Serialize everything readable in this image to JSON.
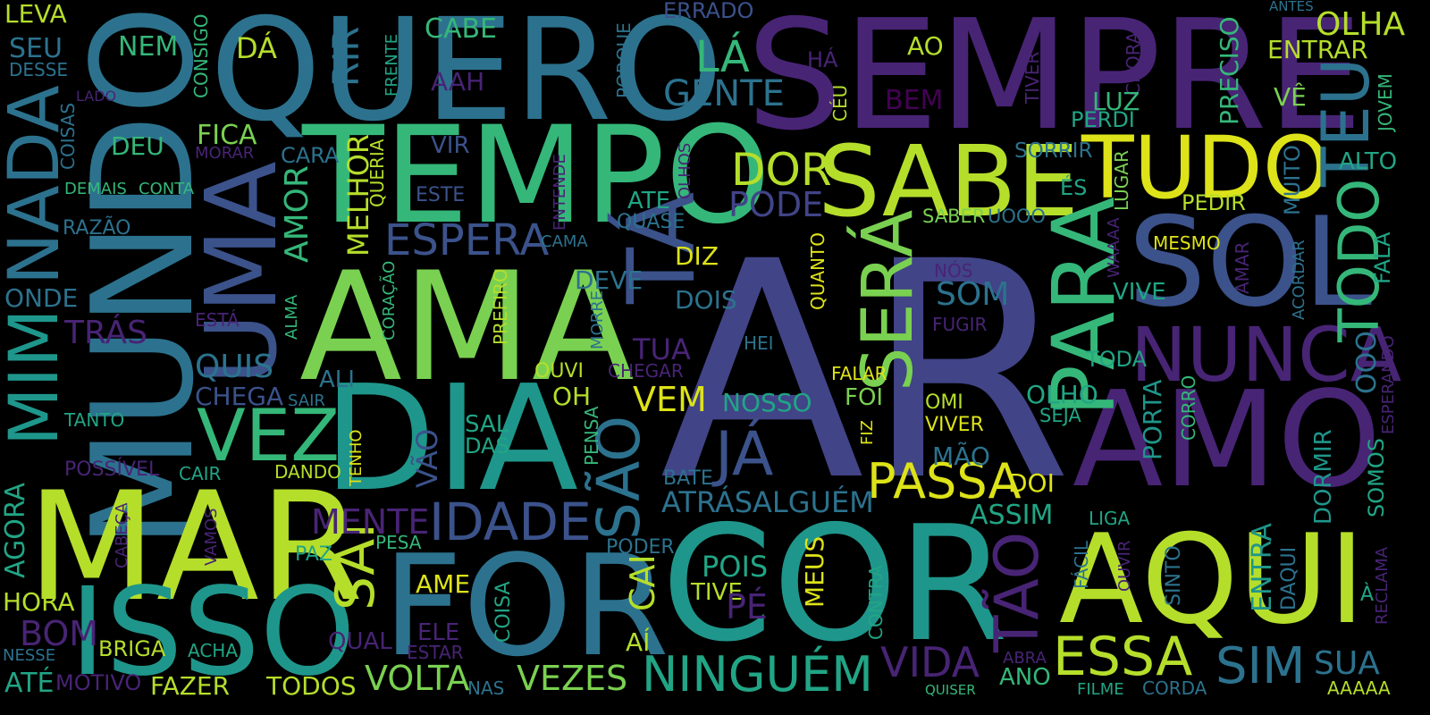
{
  "words": [
    {
      "text": "AR",
      "color": "#414487"
    },
    {
      "text": "SEMPRE",
      "color": "#482475"
    },
    {
      "text": "QUERO",
      "color": "#2c728e"
    },
    {
      "text": "MUNDO",
      "color": "#2c728e"
    },
    {
      "text": "TEMPO",
      "color": "#35b779"
    },
    {
      "text": "AMA",
      "color": "#7ad151"
    },
    {
      "text": "DIA",
      "color": "#1f968b"
    },
    {
      "text": "MAR",
      "color": "#b5de2b"
    },
    {
      "text": "COR",
      "color": "#1f968b"
    },
    {
      "text": "FOR",
      "color": "#2c728e"
    },
    {
      "text": "ISSO",
      "color": "#1f968b"
    },
    {
      "text": "AMO",
      "color": "#482475"
    },
    {
      "text": "AQUI",
      "color": "#b5de2b"
    },
    {
      "text": "SOL",
      "color": "#3b528b"
    },
    {
      "text": "SABE",
      "color": "#b5de2b"
    },
    {
      "text": "TUDO",
      "color": "#dde318"
    },
    {
      "text": "NADA",
      "color": "#2c728e"
    },
    {
      "text": "MIM",
      "color": "#1f968b"
    },
    {
      "text": "UMA",
      "color": "#3b528b"
    },
    {
      "text": "TÁ",
      "color": "#3b528b"
    },
    {
      "text": "PARA",
      "color": "#35b779"
    },
    {
      "text": "SERÁ",
      "color": "#7ad151"
    },
    {
      "text": "NUNCA",
      "color": "#482475"
    },
    {
      "text": "TEU",
      "color": "#2c728e"
    },
    {
      "text": "TODO",
      "color": "#35b779"
    },
    {
      "text": "VEZ",
      "color": "#35b779"
    },
    {
      "text": "JÁ",
      "color": "#3b528b"
    },
    {
      "text": "PASSA",
      "color": "#dde318"
    },
    {
      "text": "IDADE",
      "color": "#3b528b"
    },
    {
      "text": "NINGUÉM",
      "color": "#21a585"
    },
    {
      "text": "ESSA",
      "color": "#b5de2b"
    },
    {
      "text": "VIDA",
      "color": "#482475"
    },
    {
      "text": "SIM",
      "color": "#2c728e"
    },
    {
      "text": "ESPERA",
      "color": "#3b528b"
    },
    {
      "text": "SÃO",
      "color": "#2c728e"
    },
    {
      "text": "TÃO",
      "color": "#482475"
    },
    {
      "text": "SAI",
      "color": "#b5de2b"
    },
    {
      "text": "MENTE",
      "color": "#482475"
    },
    {
      "text": "DOR",
      "color": "#b5de2b"
    },
    {
      "text": "PODE",
      "color": "#414487"
    },
    {
      "text": "LÁ",
      "color": "#35b779"
    },
    {
      "text": "GENTE",
      "color": "#2c728e"
    },
    {
      "text": "RIR",
      "color": "#2c728e"
    },
    {
      "text": "DÁ",
      "color": "#b5de2b"
    },
    {
      "text": "CABE",
      "color": "#35b779"
    },
    {
      "text": "NEM",
      "color": "#35b779"
    },
    {
      "text": "SEU",
      "color": "#2c728e"
    },
    {
      "text": "LEVA",
      "color": "#b5de2b"
    },
    {
      "text": "DESSE",
      "color": "#2c728e"
    },
    {
      "text": "ERRADO",
      "color": "#3b528b"
    },
    {
      "text": "OLHA",
      "color": "#b5de2b"
    },
    {
      "text": "ENTRAR",
      "color": "#b5de2b"
    },
    {
      "text": "ANTES",
      "color": "#2c728e"
    },
    {
      "text": "PRECISO",
      "color": "#35b779"
    },
    {
      "text": "VÊ",
      "color": "#7ad151"
    },
    {
      "text": "JOVEM",
      "color": "#35b779"
    },
    {
      "text": "ALTO",
      "color": "#21a585"
    },
    {
      "text": "FALA",
      "color": "#21a585"
    },
    {
      "text": "CHORA",
      "color": "#482475"
    },
    {
      "text": "TIVER",
      "color": "#482475"
    },
    {
      "text": "LUZ",
      "color": "#35b779"
    },
    {
      "text": "PERDI",
      "color": "#21a585"
    },
    {
      "text": "SORRIR",
      "color": "#2c728e"
    },
    {
      "text": "ÉS",
      "color": "#21a585"
    },
    {
      "text": "LUGAR",
      "color": "#7ad151"
    },
    {
      "text": "PEDIR",
      "color": "#b5de2b"
    },
    {
      "text": "MUITO",
      "color": "#2c728e"
    },
    {
      "text": "SABER",
      "color": "#7ad151"
    },
    {
      "text": "UOOO",
      "color": "#2c728e"
    },
    {
      "text": "MESMO",
      "color": "#dde318"
    },
    {
      "text": "WAAAA",
      "color": "#482475"
    },
    {
      "text": "AMAR",
      "color": "#482475"
    },
    {
      "text": "ACORDAR",
      "color": "#2c728e"
    },
    {
      "text": "OOO",
      "color": "#2c728e"
    },
    {
      "text": "ESPERANDO",
      "color": "#482475"
    },
    {
      "text": "VIVE",
      "color": "#21a585"
    },
    {
      "text": "TODA",
      "color": "#21a585"
    },
    {
      "text": "PORTA",
      "color": "#1f968b"
    },
    {
      "text": "CORRO",
      "color": "#35b779"
    },
    {
      "text": "DORMIR",
      "color": "#1f968b"
    },
    {
      "text": "SOMOS",
      "color": "#21a585"
    },
    {
      "text": "OLHO",
      "color": "#21a585"
    },
    {
      "text": "SEJA",
      "color": "#21a585"
    },
    {
      "text": "ASSIM",
      "color": "#21a585"
    },
    {
      "text": "LIGA",
      "color": "#21a585"
    },
    {
      "text": "ENTRA",
      "color": "#1f968b"
    },
    {
      "text": "DAQUI",
      "color": "#2c728e"
    },
    {
      "text": "À",
      "color": "#21a585"
    },
    {
      "text": "RECLAMA",
      "color": "#482475"
    },
    {
      "text": "FÁCIL",
      "color": "#2c728e"
    },
    {
      "text": "OUVIR",
      "color": "#482475"
    },
    {
      "text": "SINTO",
      "color": "#2c728e"
    },
    {
      "text": "SUA",
      "color": "#2c728e"
    },
    {
      "text": "AAAAA",
      "color": "#b5de2b"
    },
    {
      "text": "CORDA",
      "color": "#2c728e"
    },
    {
      "text": "FILME",
      "color": "#21a585"
    },
    {
      "text": "QUISER",
      "color": "#35b779"
    },
    {
      "text": "ABRA",
      "color": "#482475"
    },
    {
      "text": "ANO",
      "color": "#35b779"
    },
    {
      "text": "DOI",
      "color": "#dde318"
    },
    {
      "text": "AO",
      "color": "#b5de2b"
    },
    {
      "text": "HÁ",
      "color": "#482475"
    },
    {
      "text": "CÉU",
      "color": "#b5de2b"
    },
    {
      "text": "BEM",
      "color": "#440154"
    },
    {
      "text": "PORQUE",
      "color": "#2c728e"
    },
    {
      "text": "AAH",
      "color": "#482475"
    },
    {
      "text": "FRENTE",
      "color": "#21a585"
    },
    {
      "text": "CONSIGO",
      "color": "#35b779"
    },
    {
      "text": "LADO",
      "color": "#482475"
    },
    {
      "text": "COISAS",
      "color": "#2c728e"
    },
    {
      "text": "DEU",
      "color": "#35b779"
    },
    {
      "text": "FICA",
      "color": "#7ad151"
    },
    {
      "text": "MORAR",
      "color": "#482475"
    },
    {
      "text": "CARA",
      "color": "#2c728e"
    },
    {
      "text": "VIR",
      "color": "#3b528b"
    },
    {
      "text": "OLHOS",
      "color": "#482475"
    },
    {
      "text": "ENTENDE",
      "color": "#482475"
    },
    {
      "text": "ATE",
      "color": "#21a585"
    },
    {
      "text": "QUASE",
      "color": "#2c728e"
    },
    {
      "text": "ESTE",
      "color": "#3b528b"
    },
    {
      "text": "CAMA",
      "color": "#2c728e"
    },
    {
      "text": "QUERIA",
      "color": "#b5de2b"
    },
    {
      "text": "MELHOR",
      "color": "#b5de2b"
    },
    {
      "text": "AMOR",
      "color": "#35b779"
    },
    {
      "text": "DEMAIS",
      "color": "#35b779"
    },
    {
      "text": "CONTA",
      "color": "#35b779"
    },
    {
      "text": "RAZÃO",
      "color": "#2c728e"
    },
    {
      "text": "ONDE",
      "color": "#2c728e"
    },
    {
      "text": "TRÁS",
      "color": "#482475"
    },
    {
      "text": "ESTÁ",
      "color": "#482475"
    },
    {
      "text": "ALMA",
      "color": "#35b779"
    },
    {
      "text": "CORAÇÃO",
      "color": "#35b779"
    },
    {
      "text": "QUIS",
      "color": "#2c728e"
    },
    {
      "text": "CHEGA",
      "color": "#3b528b"
    },
    {
      "text": "ALI",
      "color": "#2c728e"
    },
    {
      "text": "SAIR",
      "color": "#2c728e"
    },
    {
      "text": "TANTO",
      "color": "#21a585"
    },
    {
      "text": "POSSÍVEL",
      "color": "#482475"
    },
    {
      "text": "CAIR",
      "color": "#21a585"
    },
    {
      "text": "DANDO",
      "color": "#b5de2b"
    },
    {
      "text": "TENHO",
      "color": "#dde318"
    },
    {
      "text": "VÃO",
      "color": "#3b528b"
    },
    {
      "text": "SAL",
      "color": "#21a585"
    },
    {
      "text": "DAS",
      "color": "#21a585"
    },
    {
      "text": "AGORA",
      "color": "#21a585"
    },
    {
      "text": "CABEÇA",
      "color": "#482475"
    },
    {
      "text": "VAMOS",
      "color": "#482475"
    },
    {
      "text": "PAZ",
      "color": "#21a585"
    },
    {
      "text": "PESA",
      "color": "#35b779"
    },
    {
      "text": "HORA",
      "color": "#b5de2b"
    },
    {
      "text": "BOM",
      "color": "#482475"
    },
    {
      "text": "NESSE",
      "color": "#2c728e"
    },
    {
      "text": "BRIGA",
      "color": "#b5de2b"
    },
    {
      "text": "ACHA",
      "color": "#21a585"
    },
    {
      "text": "QUAL",
      "color": "#482475"
    },
    {
      "text": "ELE",
      "color": "#482475"
    },
    {
      "text": "ESTAR",
      "color": "#482475"
    },
    {
      "text": "ATÉ",
      "color": "#21a585"
    },
    {
      "text": "MOTIVO",
      "color": "#482475"
    },
    {
      "text": "FAZER",
      "color": "#b5de2b"
    },
    {
      "text": "TODOS",
      "color": "#b5de2b"
    },
    {
      "text": "NAS",
      "color": "#2c728e"
    },
    {
      "text": "VOLTA",
      "color": "#7ad151"
    },
    {
      "text": "VEZES",
      "color": "#7ad151"
    },
    {
      "text": "AME",
      "color": "#dde318"
    },
    {
      "text": "COISA",
      "color": "#21a585"
    },
    {
      "text": "AÍ",
      "color": "#b5de2b"
    },
    {
      "text": "PODER",
      "color": "#2c728e"
    },
    {
      "text": "CAI",
      "color": "#b5de2b"
    },
    {
      "text": "PREFIRO",
      "color": "#b5de2b"
    },
    {
      "text": "MORRE",
      "color": "#2c728e"
    },
    {
      "text": "DEVE",
      "color": "#2c728e"
    },
    {
      "text": "OUVI",
      "color": "#b5de2b"
    },
    {
      "text": "OH",
      "color": "#b5de2b"
    },
    {
      "text": "PENSA",
      "color": "#35b779"
    },
    {
      "text": "TUA",
      "color": "#482475"
    },
    {
      "text": "CHEGAR",
      "color": "#482475"
    },
    {
      "text": "VEM",
      "color": "#dde318"
    },
    {
      "text": "DIZ",
      "color": "#dde318"
    },
    {
      "text": "DOIS",
      "color": "#2c728e"
    },
    {
      "text": "HEI",
      "color": "#2c728e"
    },
    {
      "text": "QUANTO",
      "color": "#dde318"
    },
    {
      "text": "NOSSO",
      "color": "#21a585"
    },
    {
      "text": "BATE",
      "color": "#2c728e"
    },
    {
      "text": "ATRÁS",
      "color": "#2c728e"
    },
    {
      "text": "ALGUÉM",
      "color": "#2c728e"
    },
    {
      "text": "POIS",
      "color": "#21a585"
    },
    {
      "text": "TIVE",
      "color": "#b5de2b"
    },
    {
      "text": "PÉ",
      "color": "#482475"
    },
    {
      "text": "MEUS",
      "color": "#dde318"
    },
    {
      "text": "CONTRA",
      "color": "#21a585"
    },
    {
      "text": "SOM",
      "color": "#2c728e"
    },
    {
      "text": "NÓS",
      "color": "#482475"
    },
    {
      "text": "FUGIR",
      "color": "#482475"
    },
    {
      "text": "FALAR",
      "color": "#dde318"
    },
    {
      "text": "FOI",
      "color": "#7ad151"
    },
    {
      "text": "OMI",
      "color": "#b5de2b"
    },
    {
      "text": "VIVER",
      "color": "#dde318"
    },
    {
      "text": "FIZ",
      "color": "#dde318"
    },
    {
      "text": "MÃO",
      "color": "#2c728e"
    }
  ]
}
